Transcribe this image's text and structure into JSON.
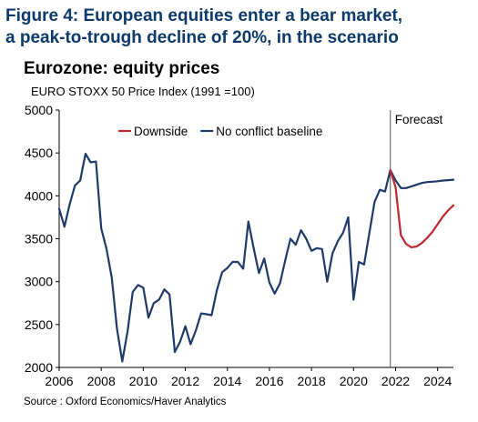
{
  "figure": {
    "title_line1": "Figure 4: European equities enter a bear market,",
    "title_line2": "a peak-to-trough decline of 20%, in the scenario"
  },
  "source": "Source : Oxford Economics/Haver Analytics",
  "colors": {
    "title": "#0b3a6b",
    "baseline": "#1f3a68",
    "downside": "#c0282f",
    "forecast_line": "#555555",
    "axis": "#000000"
  },
  "chart_data": {
    "type": "line",
    "title": "Eurozone: equity prices",
    "subtitle": "EURO STOXX 50 Price Index (1991 =100)",
    "xlabel": "",
    "ylabel": "",
    "xlim": [
      2006,
      2024.75
    ],
    "ylim": [
      2000,
      5000
    ],
    "x_ticks": [
      2006,
      2008,
      2010,
      2012,
      2014,
      2016,
      2018,
      2020,
      2022,
      2024
    ],
    "y_ticks": [
      2000,
      2500,
      3000,
      3500,
      4000,
      4500,
      5000
    ],
    "grid": false,
    "legend_position": "top",
    "annotations": [
      {
        "x": 2021.75,
        "text": "Forecast"
      }
    ],
    "series": [
      {
        "name": "Downside",
        "color": "#c0282f",
        "x": [
          2021.75,
          2022.0,
          2022.25,
          2022.5,
          2022.75,
          2023.0,
          2023.25,
          2023.5,
          2023.75,
          2024.0,
          2024.25,
          2024.5,
          2024.75
        ],
        "y": [
          4300,
          4100,
          3540,
          3440,
          3400,
          3410,
          3450,
          3510,
          3580,
          3670,
          3760,
          3830,
          3890
        ]
      },
      {
        "name": "No conflict baseline",
        "color": "#1f3a68",
        "x": [
          2006.0,
          2006.25,
          2006.5,
          2006.75,
          2007.0,
          2007.25,
          2007.5,
          2007.75,
          2008.0,
          2008.25,
          2008.5,
          2008.75,
          2009.0,
          2009.25,
          2009.5,
          2009.75,
          2010.0,
          2010.25,
          2010.5,
          2010.75,
          2011.0,
          2011.25,
          2011.5,
          2011.75,
          2012.0,
          2012.25,
          2012.5,
          2012.75,
          2013.0,
          2013.25,
          2013.5,
          2013.75,
          2014.0,
          2014.25,
          2014.5,
          2014.75,
          2015.0,
          2015.25,
          2015.5,
          2015.75,
          2016.0,
          2016.25,
          2016.5,
          2016.75,
          2017.0,
          2017.25,
          2017.5,
          2017.75,
          2018.0,
          2018.25,
          2018.5,
          2018.75,
          2019.0,
          2019.25,
          2019.5,
          2019.75,
          2020.0,
          2020.25,
          2020.5,
          2020.75,
          2021.0,
          2021.25,
          2021.5,
          2021.75,
          2022.0,
          2022.25,
          2022.5,
          2022.75,
          2023.0,
          2023.25,
          2023.5,
          2023.75,
          2024.0,
          2024.25,
          2024.5,
          2024.75
        ],
        "y": [
          3850,
          3640,
          3900,
          4120,
          4180,
          4490,
          4390,
          4400,
          3620,
          3380,
          3050,
          2450,
          2070,
          2420,
          2880,
          2960,
          2930,
          2580,
          2750,
          2790,
          2910,
          2850,
          2180,
          2300,
          2480,
          2270,
          2430,
          2630,
          2620,
          2610,
          2900,
          3110,
          3160,
          3230,
          3230,
          3150,
          3700,
          3390,
          3100,
          3270,
          2990,
          2860,
          2980,
          3250,
          3500,
          3430,
          3600,
          3500,
          3360,
          3390,
          3380,
          3000,
          3330,
          3470,
          3570,
          3750,
          2790,
          3230,
          3200,
          3560,
          3930,
          4070,
          4050,
          4300,
          4180,
          4090,
          4090,
          4110,
          4130,
          4150,
          4160,
          4165,
          4170,
          4178,
          4183,
          4188
        ]
      }
    ]
  }
}
